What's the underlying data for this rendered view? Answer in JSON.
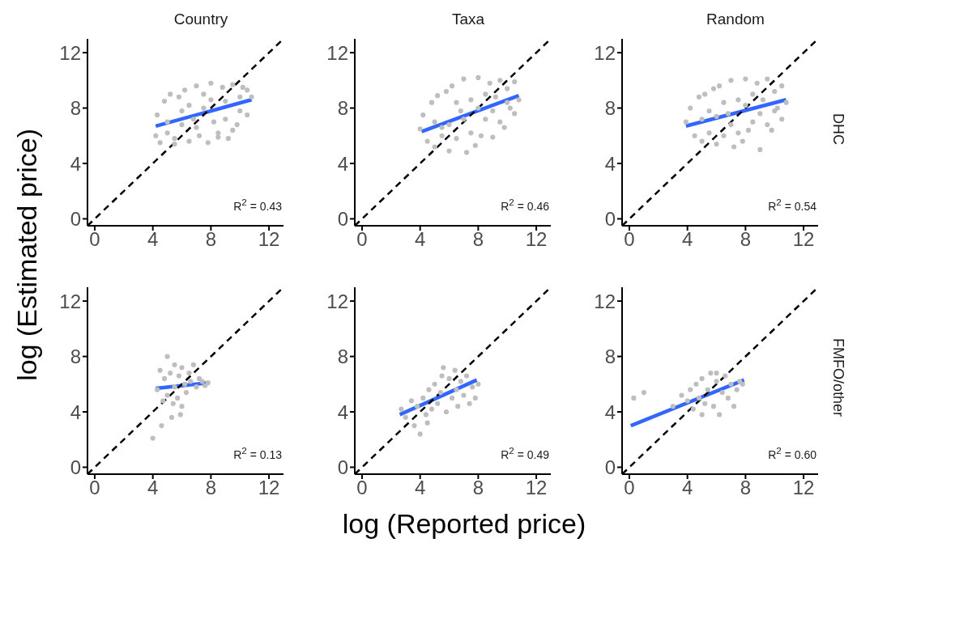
{
  "chart_data": [
    {
      "type": "scatter",
      "title": "Country",
      "ylabel": "log (Estimated price)",
      "xlim": [
        -0.5,
        13
      ],
      "ylim": [
        -0.5,
        13
      ],
      "xticks": [
        0,
        4,
        8,
        12
      ],
      "yticks": [
        0,
        4,
        8,
        12
      ],
      "annotations": [
        "R$^{2}$ = 0.43"
      ],
      "series": [
        {
          "type": "scatter",
          "marker": "circle",
          "color": "#bebebe",
          "x": [
            4.2,
            4.3,
            4.5,
            4.8,
            5,
            5.2,
            5.5,
            5.8,
            6,
            6.2,
            6.5,
            6.8,
            7,
            7.2,
            7.5,
            7.8,
            8,
            8.2,
            8.5,
            8.8,
            9,
            9.2,
            9.5,
            9.8,
            10,
            10.2,
            10.5,
            10.8,
            5,
            6,
            7,
            8,
            9,
            10,
            5.5,
            6.5,
            7.5,
            8.5,
            9.5,
            10.5
          ],
          "values": [
            6.0,
            7.5,
            5.5,
            8.5,
            6.2,
            9.0,
            5.4,
            8.8,
            6.8,
            9.3,
            5.6,
            7.2,
            9.6,
            6.0,
            8.0,
            5.5,
            9.8,
            7.0,
            6.2,
            9.5,
            8.5,
            5.8,
            9.7,
            6.8,
            8.8,
            9.5,
            7.5,
            8.8,
            7.0,
            7.8,
            6.6,
            8.6,
            7.2,
            7.8,
            5.8,
            8.2,
            9.0,
            5.9,
            6.4,
            9.3
          ]
        },
        {
          "type": "line",
          "color": "#3366ff",
          "x": [
            4.2,
            10.8
          ],
          "values": [
            6.7,
            8.6
          ]
        },
        {
          "type": "line",
          "color": "#000000",
          "line_style": "dashed",
          "x": [
            -0.5,
            13
          ],
          "values": [
            -0.5,
            13
          ]
        }
      ]
    },
    {
      "type": "scatter",
      "title": "Taxa",
      "xlim": [
        -0.5,
        13
      ],
      "ylim": [
        -0.5,
        13
      ],
      "xticks": [
        0,
        4,
        8,
        12
      ],
      "yticks": [
        0,
        4,
        8,
        12
      ],
      "annotations": [
        "R$^{2}$ = 0.46"
      ],
      "series": [
        {
          "type": "scatter",
          "marker": "circle",
          "color": "#bebebe",
          "x": [
            4.0,
            4.2,
            4.5,
            4.8,
            5,
            5.2,
            5.5,
            5.8,
            6,
            6.2,
            6.5,
            6.8,
            7,
            7.2,
            7.5,
            7.8,
            8,
            8.2,
            8.5,
            8.8,
            9,
            9.2,
            9.5,
            9.8,
            10,
            10.2,
            10.5,
            10.8,
            5,
            6,
            7,
            8,
            9,
            10,
            5.5,
            6.5,
            7.5,
            8.5,
            9.5,
            10.5
          ],
          "values": [
            6.5,
            7.5,
            5.6,
            8.4,
            5.2,
            8.9,
            6.0,
            9.2,
            4.9,
            9.6,
            5.8,
            7.8,
            10.1,
            4.8,
            8.6,
            5.3,
            10.2,
            6.0,
            7.2,
            9.8,
            5.9,
            8.8,
            10.0,
            6.6,
            9.4,
            8.0,
            9.9,
            8.6,
            7.0,
            6.8,
            7.2,
            8.0,
            7.8,
            8.4,
            6.6,
            8.4,
            6.2,
            9.0,
            7.0,
            7.6
          ]
        },
        {
          "type": "line",
          "color": "#3366ff",
          "x": [
            4.1,
            10.8
          ],
          "values": [
            6.3,
            8.9
          ]
        },
        {
          "type": "line",
          "color": "#000000",
          "line_style": "dashed",
          "x": [
            -0.5,
            13
          ],
          "values": [
            -0.5,
            13
          ]
        }
      ]
    },
    {
      "type": "scatter",
      "title": "Random",
      "y2label": "DHC",
      "xlim": [
        -0.5,
        13
      ],
      "ylim": [
        -0.5,
        13
      ],
      "xticks": [
        0,
        4,
        8,
        12
      ],
      "yticks": [
        0,
        4,
        8,
        12
      ],
      "annotations": [
        "R$^{2}$ = 0.54"
      ],
      "series": [
        {
          "type": "scatter",
          "marker": "circle",
          "color": "#bebebe",
          "x": [
            3.9,
            4.2,
            4.5,
            4.8,
            5,
            5.2,
            5.5,
            5.8,
            6,
            6.2,
            6.5,
            6.8,
            7,
            7.2,
            7.5,
            7.8,
            8,
            8.2,
            8.5,
            8.8,
            9,
            9.2,
            9.5,
            9.8,
            10,
            10.2,
            10.5,
            10.8,
            5,
            6,
            7,
            8,
            9,
            10,
            5.5,
            6.5,
            7.5,
            8.5,
            9.5,
            10.5
          ],
          "values": [
            7.0,
            8.0,
            6.0,
            8.8,
            5.6,
            9.0,
            6.2,
            9.4,
            5.4,
            9.6,
            6.0,
            7.6,
            10.0,
            5.2,
            8.6,
            5.6,
            10.1,
            6.4,
            7.0,
            9.8,
            5.0,
            8.6,
            10.1,
            6.4,
            9.2,
            8.0,
            9.6,
            8.4,
            7.2,
            7.4,
            6.8,
            8.2,
            7.6,
            7.8,
            7.8,
            8.4,
            6.2,
            9.0,
            6.8,
            7.2
          ]
        },
        {
          "type": "line",
          "color": "#3366ff",
          "x": [
            3.9,
            10.8
          ],
          "values": [
            6.7,
            8.6
          ]
        },
        {
          "type": "line",
          "color": "#000000",
          "line_style": "dashed",
          "x": [
            -0.5,
            13
          ],
          "values": [
            -0.5,
            13
          ]
        }
      ]
    },
    {
      "type": "scatter",
      "xlim": [
        -0.5,
        13
      ],
      "ylim": [
        -0.5,
        13
      ],
      "xticks": [
        0,
        4,
        8,
        12
      ],
      "yticks": [
        0,
        4,
        8,
        12
      ],
      "annotations": [
        "R$^{2}$ = 0.13"
      ],
      "series": [
        {
          "type": "scatter",
          "marker": "circle",
          "color": "#bebebe",
          "x": [
            4.0,
            4.3,
            4.5,
            4.7,
            4.8,
            5.0,
            5.0,
            5.2,
            5.3,
            5.5,
            5.5,
            5.7,
            5.8,
            6.0,
            6.0,
            6.2,
            6.3,
            6.5,
            6.6,
            6.8,
            7.0,
            7.2,
            7.4,
            7.6,
            7.8,
            4.6,
            5.4,
            5.9
          ],
          "values": [
            2.1,
            5.6,
            7.0,
            4.8,
            6.4,
            8.0,
            5.2,
            6.8,
            3.6,
            5.8,
            7.4,
            5.0,
            6.6,
            4.4,
            7.2,
            6.0,
            5.4,
            6.8,
            6.2,
            7.4,
            5.8,
            6.4,
            6.2,
            5.9,
            6.1,
            3.0,
            4.6,
            3.8
          ]
        },
        {
          "type": "line",
          "color": "#3366ff",
          "x": [
            4.2,
            7.9
          ],
          "values": [
            5.7,
            6.1
          ]
        },
        {
          "type": "line",
          "color": "#000000",
          "line_style": "dashed",
          "x": [
            -0.5,
            13
          ],
          "values": [
            -0.5,
            13
          ]
        }
      ]
    },
    {
      "type": "scatter",
      "xlabel": "log (Reported price)",
      "xlim": [
        -0.5,
        13
      ],
      "ylim": [
        -0.5,
        13
      ],
      "xticks": [
        0,
        4,
        8,
        12
      ],
      "yticks": [
        0,
        4,
        8,
        12
      ],
      "annotations": [
        "R$^{2}$ = 0.49"
      ],
      "series": [
        {
          "type": "scatter",
          "marker": "circle",
          "color": "#bebebe",
          "x": [
            2.7,
            3.0,
            3.4,
            3.6,
            3.8,
            4.0,
            4.2,
            4.4,
            4.6,
            4.8,
            5.0,
            5.2,
            5.4,
            5.6,
            5.8,
            6.0,
            6.2,
            6.4,
            6.6,
            6.8,
            7.0,
            7.2,
            7.4,
            7.6,
            7.8,
            8.0,
            4.5,
            5.5,
            6.5
          ],
          "values": [
            4.2,
            3.6,
            4.8,
            3.0,
            4.4,
            2.4,
            5.0,
            3.8,
            5.6,
            4.2,
            6.0,
            4.6,
            5.4,
            7.2,
            4.0,
            6.4,
            5.0,
            7.0,
            4.4,
            6.2,
            5.2,
            6.6,
            4.6,
            5.8,
            5.0,
            6.0,
            3.2,
            6.6,
            5.6
          ]
        },
        {
          "type": "line",
          "color": "#3366ff",
          "x": [
            2.6,
            7.9
          ],
          "values": [
            3.8,
            6.3
          ]
        },
        {
          "type": "line",
          "color": "#000000",
          "line_style": "dashed",
          "x": [
            -0.5,
            13
          ],
          "values": [
            -0.5,
            13
          ]
        }
      ]
    },
    {
      "type": "scatter",
      "y2label": "FMFO/other",
      "xlim": [
        -0.5,
        13
      ],
      "ylim": [
        -0.5,
        13
      ],
      "xticks": [
        0,
        4,
        8,
        12
      ],
      "yticks": [
        0,
        4,
        8,
        12
      ],
      "annotations": [
        "R$^{2}$ = 0.60"
      ],
      "series": [
        {
          "type": "scatter",
          "marker": "circle",
          "color": "#bebebe",
          "x": [
            0.3,
            1.0,
            3.0,
            3.6,
            4.0,
            4.2,
            4.4,
            4.6,
            4.8,
            5.0,
            5.2,
            5.4,
            5.6,
            5.8,
            6.0,
            6.2,
            6.4,
            6.6,
            6.8,
            7.0,
            7.2,
            7.4,
            7.6,
            7.8,
            5.0,
            6.0
          ],
          "values": [
            5.0,
            5.4,
            4.4,
            5.2,
            4.8,
            5.6,
            4.2,
            6.0,
            5.0,
            6.4,
            4.6,
            5.6,
            6.8,
            4.4,
            6.2,
            3.8,
            5.4,
            6.6,
            5.0,
            6.0,
            4.4,
            5.6,
            6.2,
            6.0,
            3.8,
            6.8
          ]
        },
        {
          "type": "line",
          "color": "#3366ff",
          "x": [
            0.1,
            7.9
          ],
          "values": [
            3.0,
            6.3
          ]
        },
        {
          "type": "line",
          "color": "#000000",
          "line_style": "dashed",
          "x": [
            -0.5,
            13
          ],
          "values": [
            -0.5,
            13
          ]
        }
      ]
    }
  ]
}
